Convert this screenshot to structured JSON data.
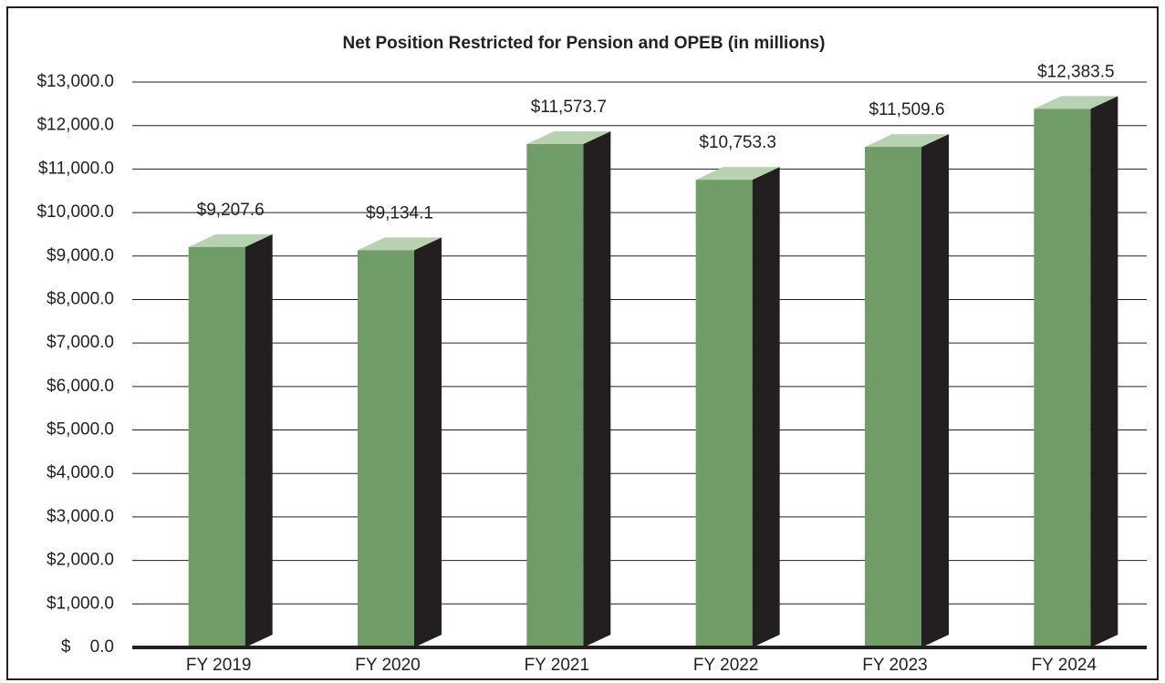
{
  "chart_data": {
    "type": "bar3d",
    "title": "Net Position Restricted for Pension and OPEB (in millions)",
    "categories": [
      "FY 2019",
      "FY 2020",
      "FY 2021",
      "FY 2022",
      "FY 2023",
      "FY 2024"
    ],
    "values": [
      9207.6,
      9134.1,
      11573.7,
      10753.3,
      11509.6,
      12383.5
    ],
    "value_labels": [
      "$9,207.6",
      "$9,134.1",
      "$11,573.7",
      "$10,753.3",
      "$11,509.6",
      "$12,383.5"
    ],
    "color": "#6f9c67",
    "ylim": [
      0,
      13000
    ],
    "yticks": [
      {
        "value": 0,
        "label": "$    0.0"
      },
      {
        "value": 1000,
        "label": "$1,000.0"
      },
      {
        "value": 2000,
        "label": "$2,000.0"
      },
      {
        "value": 3000,
        "label": "$3,000.0"
      },
      {
        "value": 4000,
        "label": "$4,000.0"
      },
      {
        "value": 5000,
        "label": "$5,000.0"
      },
      {
        "value": 6000,
        "label": "$6,000.0"
      },
      {
        "value": 7000,
        "label": "$7,000.0"
      },
      {
        "value": 8000,
        "label": "$8,000.0"
      },
      {
        "value": 9000,
        "label": "$9,000.0"
      },
      {
        "value": 10000,
        "label": "$10,000.0"
      },
      {
        "value": 11000,
        "label": "$11,000.0"
      },
      {
        "value": 12000,
        "label": "$12,000.0"
      },
      {
        "value": 13000,
        "label": "$13,000.0"
      }
    ],
    "grid": true
  }
}
